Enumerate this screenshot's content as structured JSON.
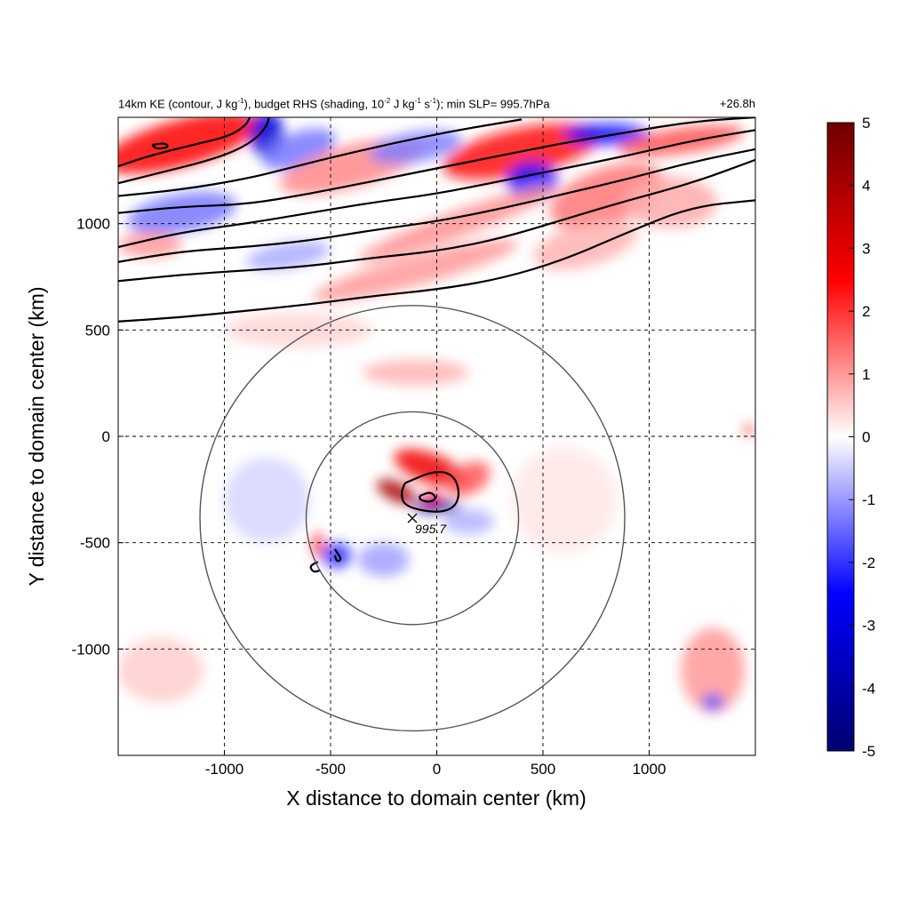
{
  "chart_data": {
    "type": "heatmap",
    "title_parts": {
      "a": "14km KE (contour, J kg",
      "a_sup": "-1",
      "b": "), budget RHS (shading, 10",
      "b_sup": "-2",
      "c": " J kg",
      "c_sup": "-1",
      "d": " s",
      "d_sup": "-1",
      "e": "); min SLP= 995.7hPa"
    },
    "time_label": "+26.8h",
    "xlabel": "X distance to domain center (km)",
    "ylabel": "Y distance to domain center (km)",
    "xlim": [
      -1500,
      1500
    ],
    "ylim": [
      -1500,
      1500
    ],
    "xticks": [
      -1000,
      -500,
      0,
      500,
      1000
    ],
    "yticks": [
      1000,
      500,
      0,
      -500,
      -1000
    ],
    "xtick_labels": [
      "-1000",
      "-500",
      "0",
      "500",
      "1000"
    ],
    "ytick_labels": [
      "1000",
      "500",
      "0",
      "-500",
      "-1000"
    ],
    "grid": true,
    "colorbar": {
      "colormap": "blue-white-red diverging",
      "range": [
        -5,
        5
      ],
      "ticks": [
        5,
        4,
        3,
        2,
        1,
        0,
        -1,
        -2,
        -3,
        -4,
        -5
      ],
      "tick_labels": [
        "5",
        "4",
        "3",
        "2",
        "1",
        "0",
        "-1",
        "-2",
        "-3",
        "-4",
        "-5"
      ],
      "colors": {
        "neg_max": "#00006e",
        "neg_mid": "#0000ff",
        "zero": "#ffffff",
        "pos_mid": "#ff0000",
        "pos_max": "#6e0000"
      }
    },
    "storm_center": {
      "x": -115,
      "y": -385,
      "min_slp_label": "995.7"
    },
    "range_circles_km": [
      500,
      1000
    ],
    "contours": [
      {
        "points": [
          [
            -1500,
            540
          ],
          [
            -1200,
            560
          ],
          [
            -900,
            590
          ],
          [
            -600,
            620
          ],
          [
            -300,
            660
          ],
          [
            0,
            690
          ],
          [
            300,
            740
          ],
          [
            600,
            830
          ],
          [
            900,
            960
          ],
          [
            1200,
            1080
          ],
          [
            1500,
            1110
          ]
        ]
      },
      {
        "points": [
          [
            -1500,
            730
          ],
          [
            -1200,
            760
          ],
          [
            -900,
            780
          ],
          [
            -600,
            800
          ],
          [
            -300,
            840
          ],
          [
            0,
            870
          ],
          [
            300,
            930
          ],
          [
            600,
            1020
          ],
          [
            900,
            1110
          ],
          [
            1200,
            1190
          ],
          [
            1500,
            1300
          ]
        ]
      },
      {
        "points": [
          [
            -1500,
            820
          ],
          [
            -1200,
            870
          ],
          [
            -900,
            890
          ],
          [
            -600,
            920
          ],
          [
            -300,
            970
          ],
          [
            0,
            1010
          ],
          [
            300,
            1070
          ],
          [
            600,
            1140
          ],
          [
            900,
            1210
          ],
          [
            1200,
            1290
          ],
          [
            1500,
            1350
          ]
        ]
      },
      {
        "points": [
          [
            -1500,
            890
          ],
          [
            -1200,
            960
          ],
          [
            -900,
            1000
          ],
          [
            -600,
            1050
          ],
          [
            -300,
            1100
          ],
          [
            0,
            1140
          ],
          [
            300,
            1200
          ],
          [
            600,
            1260
          ],
          [
            900,
            1320
          ],
          [
            1200,
            1390
          ],
          [
            1500,
            1440
          ]
        ]
      },
      {
        "points": [
          [
            -1500,
            1050
          ],
          [
            -1200,
            1080
          ],
          [
            -900,
            1090
          ],
          [
            -600,
            1140
          ],
          [
            -300,
            1200
          ],
          [
            0,
            1260
          ],
          [
            300,
            1320
          ],
          [
            600,
            1380
          ],
          [
            900,
            1430
          ],
          [
            1200,
            1480
          ],
          [
            1500,
            1500
          ]
        ]
      },
      {
        "points": [
          [
            -1500,
            1130
          ],
          [
            -1200,
            1160
          ],
          [
            -900,
            1210
          ],
          [
            -700,
            1260
          ],
          [
            -500,
            1310
          ],
          [
            -200,
            1380
          ],
          [
            100,
            1440
          ],
          [
            400,
            1490
          ]
        ]
      },
      {
        "points": [
          [
            -1500,
            1190
          ],
          [
            -1300,
            1240
          ],
          [
            -1100,
            1290
          ],
          [
            -950,
            1340
          ],
          [
            -850,
            1400
          ],
          [
            -800,
            1460
          ],
          [
            -790,
            1500
          ]
        ]
      },
      {
        "points": [
          [
            -1500,
            1270
          ],
          [
            -1350,
            1320
          ],
          [
            -1150,
            1370
          ],
          [
            -980,
            1410
          ],
          [
            -900,
            1460
          ],
          [
            -880,
            1500
          ]
        ]
      },
      {
        "points": [
          [
            -150,
            -220
          ],
          [
            -10,
            -160
          ],
          [
            80,
            -180
          ],
          [
            110,
            -270
          ],
          [
            80,
            -340
          ],
          [
            -10,
            -360
          ],
          [
            -150,
            -330
          ],
          [
            -170,
            -270
          ],
          [
            -150,
            -220
          ]
        ]
      },
      {
        "points": [
          [
            -80,
            -280
          ],
          [
            -30,
            -260
          ],
          [
            0,
            -290
          ],
          [
            -30,
            -310
          ],
          [
            -80,
            -300
          ],
          [
            -80,
            -280
          ]
        ]
      },
      {
        "points": [
          [
            -1340,
            1370
          ],
          [
            -1280,
            1380
          ],
          [
            -1260,
            1360
          ],
          [
            -1320,
            1350
          ],
          [
            -1340,
            1370
          ]
        ]
      },
      {
        "points": [
          [
            -560,
            -590
          ],
          [
            -600,
            -610
          ],
          [
            -580,
            -640
          ],
          [
            -550,
            -630
          ]
        ]
      },
      {
        "points": [
          [
            -480,
            -530
          ],
          [
            -460,
            -560
          ],
          [
            -450,
            -580
          ],
          [
            -470,
            -590
          ],
          [
            -480,
            -560
          ]
        ]
      }
    ],
    "blobs": [
      {
        "x": -1200,
        "y": 1380,
        "rx": 380,
        "ry": 110,
        "rot": 15,
        "v": 3.0
      },
      {
        "x": -800,
        "y": 1420,
        "rx": 80,
        "ry": 110,
        "rot": 0,
        "v": -3.5
      },
      {
        "x": -650,
        "y": 1350,
        "rx": 180,
        "ry": 80,
        "rot": 20,
        "v": -1.6
      },
      {
        "x": -400,
        "y": 1270,
        "rx": 350,
        "ry": 100,
        "rot": 15,
        "v": 1.4
      },
      {
        "x": -100,
        "y": 1360,
        "rx": 220,
        "ry": 70,
        "rot": 10,
        "v": -1.5
      },
      {
        "x": 400,
        "y": 1340,
        "rx": 380,
        "ry": 110,
        "rot": 12,
        "v": 2.8
      },
      {
        "x": 800,
        "y": 1420,
        "rx": 200,
        "ry": 50,
        "rot": 0,
        "v": -2.8
      },
      {
        "x": 1150,
        "y": 1390,
        "rx": 300,
        "ry": 60,
        "rot": 8,
        "v": 2.0
      },
      {
        "x": 450,
        "y": 1200,
        "rx": 120,
        "ry": 90,
        "rot": 0,
        "v": -2.8
      },
      {
        "x": 800,
        "y": 1130,
        "rx": 280,
        "ry": 130,
        "rot": 20,
        "v": 1.6
      },
      {
        "x": 1100,
        "y": 1100,
        "rx": 220,
        "ry": 120,
        "rot": 0,
        "v": 1.0
      },
      {
        "x": 100,
        "y": 1000,
        "rx": 500,
        "ry": 60,
        "rot": 20,
        "v": 1.3
      },
      {
        "x": -1200,
        "y": 1050,
        "rx": 260,
        "ry": 90,
        "rot": 10,
        "v": -1.6
      },
      {
        "x": -1350,
        "y": 900,
        "rx": 150,
        "ry": 60,
        "rot": 0,
        "v": 1.2
      },
      {
        "x": -700,
        "y": 850,
        "rx": 200,
        "ry": 60,
        "rot": 10,
        "v": -1.0
      },
      {
        "x": -100,
        "y": 780,
        "rx": 500,
        "ry": 70,
        "rot": 15,
        "v": 1.2
      },
      {
        "x": 700,
        "y": 900,
        "rx": 250,
        "ry": 100,
        "rot": 15,
        "v": 0.9
      },
      {
        "x": -100,
        "y": 300,
        "rx": 250,
        "ry": 60,
        "rot": 0,
        "v": 0.9
      },
      {
        "x": -650,
        "y": 500,
        "rx": 350,
        "ry": 80,
        "rot": 0,
        "v": 0.5
      },
      {
        "x": -30,
        "y": -150,
        "rx": 180,
        "ry": 70,
        "rot": -20,
        "v": 3.2
      },
      {
        "x": -190,
        "y": -260,
        "rx": 100,
        "ry": 45,
        "rot": -25,
        "v": 4.2
      },
      {
        "x": 150,
        "y": -200,
        "rx": 110,
        "ry": 70,
        "rot": 30,
        "v": 2.0
      },
      {
        "x": 0,
        "y": -330,
        "rx": 110,
        "ry": 30,
        "rot": 0,
        "v": -4.5
      },
      {
        "x": -20,
        "y": -290,
        "rx": 50,
        "ry": 22,
        "rot": 0,
        "v": 3.0
      },
      {
        "x": -560,
        "y": -510,
        "rx": 30,
        "ry": 60,
        "rot": 0,
        "v": 2.2
      },
      {
        "x": -470,
        "y": -560,
        "rx": 70,
        "ry": 60,
        "rot": 0,
        "v": -2.4
      },
      {
        "x": -250,
        "y": -580,
        "rx": 120,
        "ry": 80,
        "rot": 0,
        "v": -1.1
      },
      {
        "x": 150,
        "y": -400,
        "rx": 120,
        "ry": 60,
        "rot": 0,
        "v": -0.9
      },
      {
        "x": -800,
        "y": -300,
        "rx": 200,
        "ry": 200,
        "rot": 0,
        "v": -0.5
      },
      {
        "x": 1300,
        "y": -1100,
        "rx": 150,
        "ry": 200,
        "rot": 0,
        "v": 1.2
      },
      {
        "x": 1300,
        "y": -1250,
        "rx": 50,
        "ry": 40,
        "rot": 0,
        "v": -2.0
      },
      {
        "x": -1300,
        "y": -1100,
        "rx": 200,
        "ry": 150,
        "rot": 0,
        "v": 0.6
      },
      {
        "x": 600,
        "y": -300,
        "rx": 250,
        "ry": 250,
        "rot": 0,
        "v": 0.3
      },
      {
        "x": 1470,
        "y": 30,
        "rx": 25,
        "ry": 30,
        "rot": 0,
        "v": 2.0
      }
    ]
  }
}
